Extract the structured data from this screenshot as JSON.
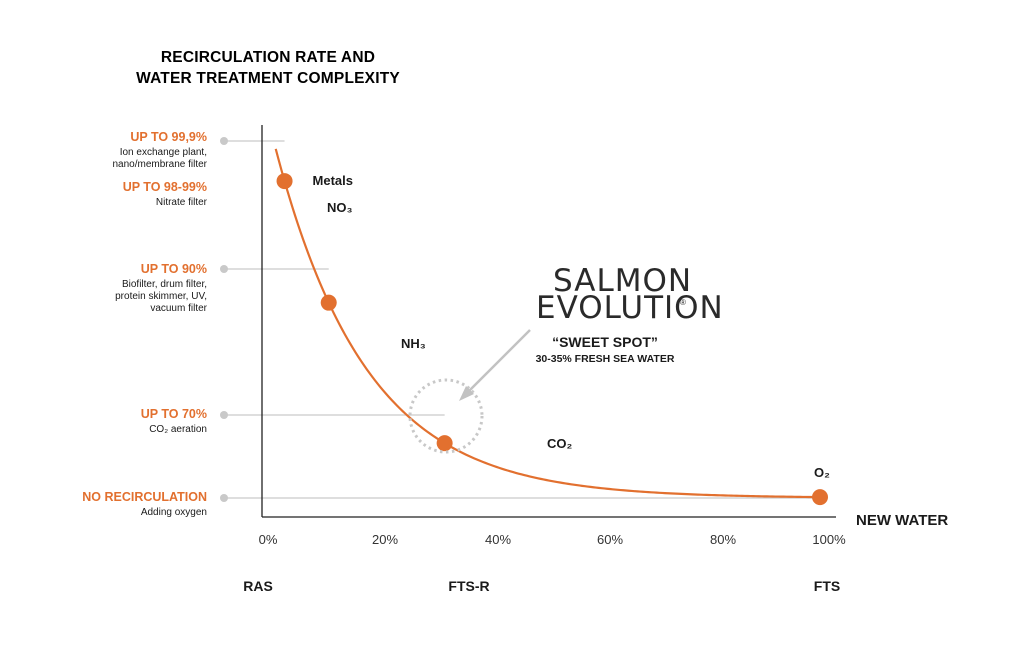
{
  "chart_data": {
    "type": "line",
    "title_lines": [
      "RECIRCULATION RATE AND",
      "WATER TREATMENT COMPLEXITY"
    ],
    "x_axis": {
      "label": "NEW WATER",
      "ticks": [
        "0%",
        "20%",
        "40%",
        "60%",
        "80%",
        "100%"
      ],
      "range": [
        0,
        100
      ]
    },
    "zones": [
      {
        "label": "RAS",
        "x": 0
      },
      {
        "label": "FTS-R",
        "x": 40
      },
      {
        "label": "FTS",
        "x": 100
      }
    ],
    "levels": [
      {
        "title": "UP TO 99,9%",
        "desc": [
          "Ion exchange plant,",
          "nano/membrane filter"
        ],
        "marker": true
      },
      {
        "title": "UP TO 98-99%",
        "desc": [
          "Nitrate filter"
        ],
        "marker": false
      },
      {
        "title": "UP TO 90%",
        "desc": [
          "Biofilter, drum filter,",
          "protein skimmer, UV,",
          "vacuum filter"
        ],
        "marker": true
      },
      {
        "title": "UP TO 70%",
        "desc": [
          "CO₂ aeration"
        ],
        "marker": true
      },
      {
        "title": "NO RECIRCULATION",
        "desc": [
          "Adding oxygen"
        ],
        "marker": true
      }
    ],
    "points": [
      {
        "x": 3,
        "label": "Metals"
      },
      {
        "x": 11,
        "label": ""
      },
      {
        "x": 32,
        "label": ""
      },
      {
        "x": 100,
        "label": ""
      }
    ],
    "parameters": [
      "NO₃",
      "NH₃",
      "CO₂",
      "O₂"
    ],
    "highlight": {
      "brand_line1": "SALMON",
      "brand_line2": "EVOLUTION",
      "title": "“SWEET SPOT”",
      "subtitle": "30-35% FRESH SEA WATER"
    },
    "colors": {
      "accent": "#e2702f",
      "guide": "#c9c9c9",
      "axis": "#222222",
      "circle": "#c8c8c8"
    }
  }
}
